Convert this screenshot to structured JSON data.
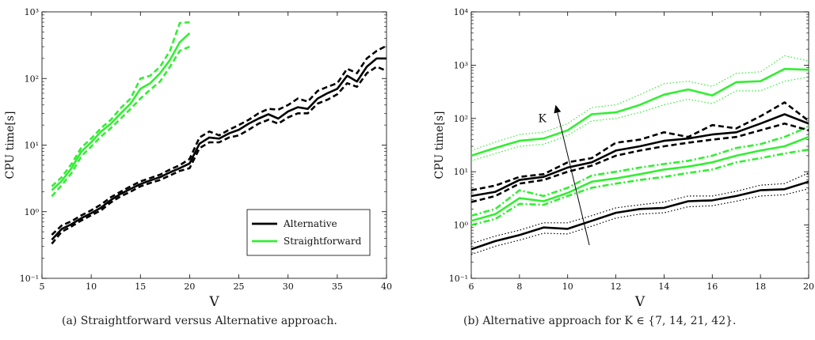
{
  "captions": {
    "a": "(a)  Straightforward versus Alternative approach.",
    "b": "(b)  Alternative approach for K ∈ {7, 14, 21, 42}."
  },
  "chart_data": [
    {
      "type": "line",
      "xlabel": "V",
      "ylabel": "CPU time[s]",
      "xlim": [
        5,
        40
      ],
      "ylim": [
        0.1,
        1000
      ],
      "yscale": "log",
      "xticks": [
        5,
        10,
        15,
        20,
        25,
        30,
        35,
        40
      ],
      "yticks": [
        0.1,
        1,
        10,
        100,
        1000
      ],
      "ytick_labels": [
        "10⁻¹",
        "10⁰",
        "10¹",
        "10²",
        "10³"
      ],
      "legend_position": "bottom-right",
      "legend": [
        "Alternative",
        "Straightforward"
      ],
      "colors": {
        "alternative": "#000000",
        "straightforward": "#33ee33"
      },
      "series": [
        {
          "name": "Alternative",
          "role": "mean",
          "style": "solid",
          "color": "#000000",
          "x": [
            6,
            7,
            8,
            9,
            10,
            11,
            12,
            13,
            14,
            15,
            16,
            17,
            18,
            19,
            20,
            21,
            22,
            23,
            24,
            25,
            26,
            27,
            28,
            29,
            30,
            31,
            32,
            33,
            34,
            35,
            36,
            37,
            38,
            39,
            40
          ],
          "y": [
            0.38,
            0.55,
            0.65,
            0.8,
            0.95,
            1.15,
            1.5,
            1.85,
            2.2,
            2.6,
            2.95,
            3.3,
            3.9,
            4.5,
            5.3,
            10.5,
            13,
            12.5,
            15,
            17,
            21,
            25,
            29,
            25,
            32,
            37,
            35,
            50,
            60,
            70,
            110,
            90,
            150,
            200,
            200
          ]
        },
        {
          "name": "",
          "role": "upper",
          "style": "dashed",
          "color": "#000000",
          "x": [
            6,
            7,
            8,
            9,
            10,
            11,
            12,
            13,
            14,
            15,
            16,
            17,
            18,
            19,
            20,
            21,
            22,
            23,
            24,
            25,
            26,
            27,
            28,
            29,
            30,
            31,
            32,
            33,
            34,
            35,
            36,
            37,
            38,
            39,
            40
          ],
          "y": [
            0.45,
            0.62,
            0.72,
            0.88,
            1.05,
            1.28,
            1.65,
            2.0,
            2.4,
            2.85,
            3.2,
            3.6,
            4.3,
            5.0,
            6.2,
            13,
            16,
            14,
            17,
            20,
            24,
            30,
            35,
            34,
            40,
            50,
            45,
            65,
            75,
            85,
            140,
            120,
            200,
            260,
            310
          ]
        },
        {
          "name": "",
          "role": "lower",
          "style": "dashed",
          "color": "#000000",
          "x": [
            6,
            7,
            8,
            9,
            10,
            11,
            12,
            13,
            14,
            15,
            16,
            17,
            18,
            19,
            20,
            21,
            22,
            23,
            24,
            25,
            26,
            27,
            28,
            29,
            30,
            31,
            32,
            33,
            34,
            35,
            36,
            37,
            38,
            39,
            40
          ],
          "y": [
            0.33,
            0.5,
            0.6,
            0.74,
            0.88,
            1.05,
            1.38,
            1.7,
            2.0,
            2.4,
            2.7,
            3.0,
            3.5,
            4.1,
            4.5,
            9,
            11,
            11,
            13,
            14,
            17,
            21,
            24,
            21,
            26,
            30,
            30,
            42,
            48,
            58,
            85,
            75,
            120,
            150,
            130
          ]
        },
        {
          "name": "Straightforward",
          "role": "mean",
          "style": "solid",
          "color": "#33ee33",
          "x": [
            6,
            7,
            8,
            9,
            10,
            11,
            12,
            13,
            14,
            15,
            16,
            17,
            18,
            19,
            20
          ],
          "y": [
            2.1,
            2.9,
            4.5,
            8,
            11,
            16,
            21,
            30,
            42,
            70,
            85,
            120,
            190,
            350,
            480
          ]
        },
        {
          "name": "",
          "role": "upper",
          "style": "dashed",
          "color": "#33ee33",
          "x": [
            6,
            7,
            8,
            9,
            10,
            11,
            12,
            13,
            14,
            15,
            16,
            17,
            18,
            19,
            20
          ],
          "y": [
            2.4,
            3.3,
            5.2,
            9.2,
            12.5,
            18,
            24,
            36,
            50,
            100,
            110,
            150,
            260,
            680,
            700
          ]
        },
        {
          "name": "",
          "role": "lower",
          "style": "dashed",
          "color": "#33ee33",
          "x": [
            6,
            7,
            8,
            9,
            10,
            11,
            12,
            13,
            14,
            15,
            16,
            17,
            18,
            19,
            20
          ],
          "y": [
            1.7,
            2.5,
            3.8,
            6.8,
            9.5,
            13.5,
            18,
            25,
            35,
            50,
            68,
            90,
            150,
            260,
            300
          ]
        }
      ]
    },
    {
      "type": "line",
      "xlabel": "V",
      "ylabel": "CPU time[s]",
      "xlim": [
        6,
        20
      ],
      "ylim": [
        0.1,
        10000
      ],
      "yscale": "log",
      "xticks": [
        6,
        8,
        10,
        12,
        14,
        16,
        18,
        20
      ],
      "yticks": [
        0.1,
        1,
        10,
        100,
        1000,
        10000
      ],
      "ytick_labels": [
        "10⁻¹",
        "10⁰",
        "10¹",
        "10²",
        "10³",
        "10⁴"
      ],
      "annotation": "K",
      "colors": {
        "black": "#000000",
        "green": "#33ee33"
      },
      "series": [
        {
          "name": "",
          "style": "solid",
          "color": "#000000",
          "x": [
            6,
            7,
            8,
            9,
            10,
            11,
            12,
            13,
            14,
            15,
            16,
            17,
            18,
            19,
            20
          ],
          "y": [
            0.35,
            0.5,
            0.65,
            0.9,
            0.85,
            1.2,
            1.7,
            2.0,
            2.1,
            2.8,
            2.9,
            3.5,
            4.5,
            4.7,
            6.5
          ]
        },
        {
          "name": "",
          "style": "dotted",
          "color": "#000000",
          "x": [
            6,
            7,
            8,
            9,
            10,
            11,
            12,
            13,
            14,
            15,
            16,
            17,
            18,
            19,
            20
          ],
          "y": [
            0.45,
            0.62,
            0.8,
            1.1,
            1.1,
            1.5,
            2.1,
            2.4,
            2.7,
            3.5,
            3.5,
            4.3,
            5.6,
            6.0,
            9.5
          ]
        },
        {
          "name": "",
          "style": "dotted",
          "color": "#000000",
          "x": [
            6,
            7,
            8,
            9,
            10,
            11,
            12,
            13,
            14,
            15,
            16,
            17,
            18,
            19,
            20
          ],
          "y": [
            0.28,
            0.4,
            0.52,
            0.7,
            0.68,
            0.95,
            1.35,
            1.6,
            1.7,
            2.2,
            2.3,
            2.8,
            3.5,
            3.7,
            4.8
          ]
        },
        {
          "name": "",
          "style": "solid",
          "color": "#33ee33",
          "x": [
            6,
            7,
            8,
            9,
            10,
            11,
            12,
            13,
            14,
            15,
            16,
            17,
            18,
            19,
            20
          ],
          "y": [
            1.2,
            1.6,
            3.2,
            2.8,
            4.0,
            6.5,
            7.5,
            9,
            11,
            12.5,
            15,
            20,
            25,
            30,
            45
          ]
        },
        {
          "name": "",
          "style": "dashdot",
          "color": "#33ee33",
          "x": [
            6,
            7,
            8,
            9,
            10,
            11,
            12,
            13,
            14,
            15,
            16,
            17,
            18,
            19,
            20
          ],
          "y": [
            1.5,
            2.0,
            4.5,
            3.5,
            5.0,
            8.5,
            10,
            12,
            14,
            16,
            20,
            28,
            33,
            45,
            70
          ]
        },
        {
          "name": "",
          "style": "dashdot",
          "color": "#33ee33",
          "x": [
            6,
            7,
            8,
            9,
            10,
            11,
            12,
            13,
            14,
            15,
            16,
            17,
            18,
            19,
            20
          ],
          "y": [
            1.0,
            1.3,
            2.5,
            2.4,
            3.5,
            5.0,
            6.0,
            7,
            8,
            9.5,
            11,
            15,
            18,
            22,
            26
          ]
        },
        {
          "name": "",
          "style": "solid",
          "color": "#000000",
          "x": [
            6,
            7,
            8,
            9,
            10,
            11,
            12,
            13,
            14,
            15,
            16,
            17,
            18,
            19,
            20
          ],
          "y": [
            3.5,
            4.2,
            7,
            8,
            12,
            15,
            25,
            30,
            38,
            42,
            50,
            55,
            80,
            120,
            80
          ]
        },
        {
          "name": "",
          "style": "dashed",
          "color": "#000000",
          "x": [
            6,
            7,
            8,
            9,
            10,
            11,
            12,
            13,
            14,
            15,
            16,
            17,
            18,
            19,
            20
          ],
          "y": [
            4.5,
            5.5,
            8,
            9,
            15,
            18,
            35,
            40,
            55,
            45,
            75,
            65,
            110,
            200,
            90
          ]
        },
        {
          "name": "",
          "style": "dashed",
          "color": "#000000",
          "x": [
            6,
            7,
            8,
            9,
            10,
            11,
            12,
            13,
            14,
            15,
            16,
            17,
            18,
            19,
            20
          ],
          "y": [
            2.7,
            3.5,
            6,
            7,
            10,
            13,
            20,
            25,
            30,
            35,
            40,
            45,
            60,
            80,
            60
          ]
        },
        {
          "name": "",
          "style": "solid",
          "color": "#33ee33",
          "x": [
            6,
            7,
            8,
            9,
            10,
            11,
            12,
            13,
            14,
            15,
            16,
            17,
            18,
            19,
            20
          ],
          "y": [
            20,
            28,
            38,
            42,
            60,
            120,
            130,
            180,
            280,
            350,
            270,
            480,
            500,
            850,
            820
          ]
        },
        {
          "name": "",
          "style": "dotted",
          "color": "#33ee33",
          "x": [
            6,
            7,
            8,
            9,
            10,
            11,
            12,
            13,
            14,
            15,
            16,
            17,
            18,
            19,
            20
          ],
          "y": [
            25,
            36,
            50,
            55,
            80,
            160,
            180,
            280,
            450,
            500,
            400,
            700,
            750,
            1500,
            1200
          ]
        },
        {
          "name": "",
          "style": "dotted",
          "color": "#33ee33",
          "x": [
            6,
            7,
            8,
            9,
            10,
            11,
            12,
            13,
            14,
            15,
            16,
            17,
            18,
            19,
            20
          ],
          "y": [
            16,
            22,
            30,
            33,
            48,
            90,
            100,
            130,
            180,
            230,
            190,
            330,
            330,
            500,
            600
          ]
        }
      ]
    }
  ]
}
